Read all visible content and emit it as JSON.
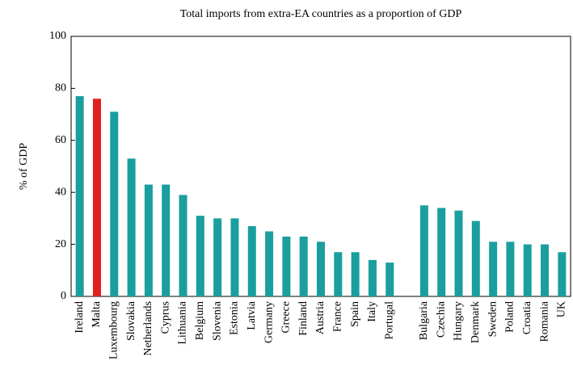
{
  "chart_data": {
    "type": "bar",
    "title": "Total imports from extra-EA countries as a proportion of GDP",
    "y_label": "% of GDP",
    "categories": [
      "Ireland",
      "Malta",
      "Luxembourg",
      "Slovakia",
      "Netherlands",
      "Cyprus",
      "Lithuania",
      "Belgium",
      "Slovenia",
      "Estonia",
      "Latvia",
      "Germany",
      "Greece",
      "Finland",
      "Austria",
      "France",
      "Spain",
      "Italy",
      "Portugal",
      null,
      "Bulgaria",
      "Czechia",
      "Hungary",
      "Denmark",
      "Sweden",
      "Poland",
      "Croatia",
      "Romania",
      "UK"
    ],
    "values": [
      77,
      76,
      71,
      53,
      43,
      43,
      39,
      31,
      30,
      30,
      27,
      25,
      23,
      23,
      21,
      17,
      17,
      14,
      13,
      null,
      35,
      34,
      33,
      29,
      21,
      21,
      20,
      20,
      17
    ],
    "colors": [
      "#1a9e9e",
      "#e02020",
      "#1a9e9e",
      "#1a9e9e",
      "#1a9e9e",
      "#1a9e9e",
      "#1a9e9e",
      "#1a9e9e",
      "#1a9e9e",
      "#1a9e9e",
      "#1a9e9e",
      "#1a9e9e",
      "#1a9e9e",
      "#1a9e9e",
      "#1a9e9e",
      "#1a9e9e",
      "#1a9e9e",
      "#1a9e9e",
      "#1a9e9e",
      null,
      "#1a9e9e",
      "#1a9e9e",
      "#1a9e9e",
      "#1a9e9e",
      "#1a9e9e",
      "#1a9e9e",
      "#1a9e9e",
      "#1a9e9e",
      "#1a9e9e"
    ],
    "ylim": [
      0,
      100
    ],
    "yticks": [
      0,
      20,
      40,
      60,
      80,
      100
    ],
    "grid": false
  }
}
